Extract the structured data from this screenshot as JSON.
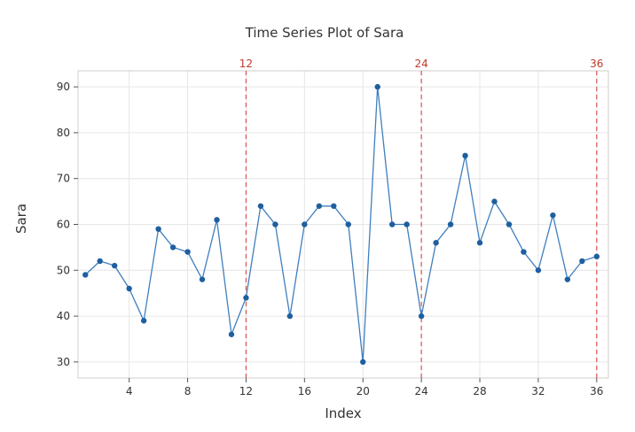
{
  "chart_data": {
    "type": "line",
    "title": "Time Series Plot of Sara",
    "xlabel": "Index",
    "ylabel": "Sara",
    "x": [
      1,
      2,
      3,
      4,
      5,
      6,
      7,
      8,
      9,
      10,
      11,
      12,
      13,
      14,
      15,
      16,
      17,
      18,
      19,
      20,
      21,
      22,
      23,
      24,
      25,
      26,
      27,
      28,
      29,
      30,
      31,
      32,
      33,
      34,
      35,
      36
    ],
    "series": [
      {
        "values": [
          49,
          52,
          51,
          46,
          39,
          59,
          55,
          54,
          48,
          61,
          36,
          44,
          64,
          60,
          40,
          60,
          64,
          64,
          60,
          30,
          90,
          60,
          60,
          40,
          56,
          60,
          75,
          56,
          65,
          60,
          54,
          50,
          62,
          48,
          52,
          53
        ]
      }
    ],
    "xlim": [
      0.5,
      36.8
    ],
    "ylim": [
      26.5,
      93.5
    ],
    "xticks": [
      4,
      8,
      12,
      16,
      20,
      24,
      28,
      32,
      36
    ],
    "yticks": [
      30,
      40,
      50,
      60,
      70,
      80,
      90
    ],
    "reference_lines": [
      12,
      24,
      36
    ],
    "grid": true,
    "colors": {
      "line": "#3f7fbf",
      "marker": "#1f5f9f",
      "reference": "#d9534f",
      "reference_label": "#c0392b",
      "grid": "#e6e6e6",
      "frame": "#cfcfcf"
    }
  }
}
